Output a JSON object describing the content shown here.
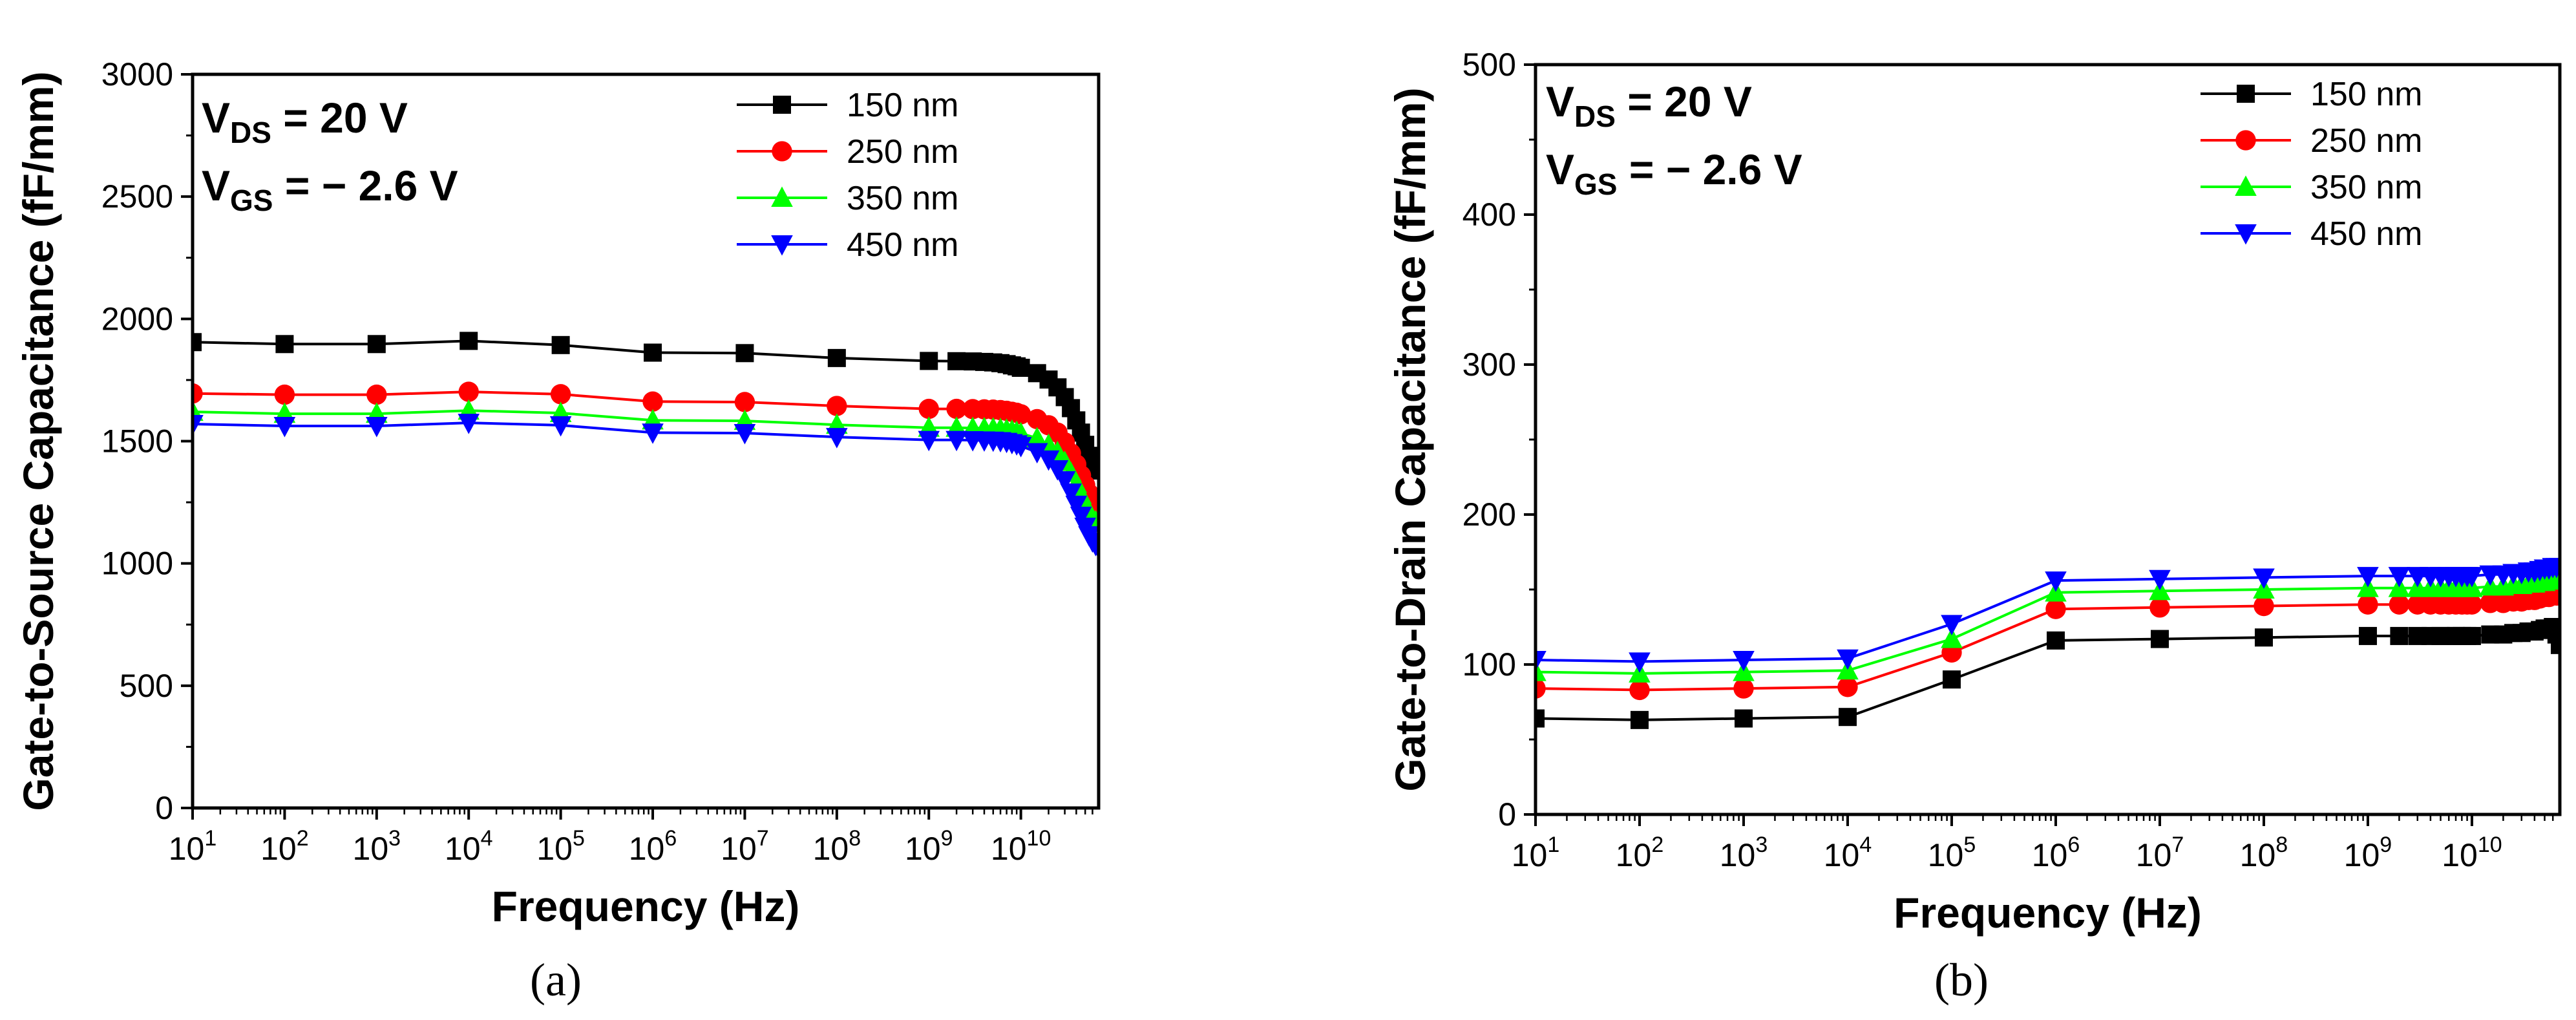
{
  "chart_data": [
    {
      "type": "line",
      "panel": "(a)",
      "xlabel": "Frequency (Hz)",
      "ylabel": "Gate-to-Source Capacitance (fF/mm)",
      "x_scale": "log",
      "xlim": [
        10,
        70000000000.0
      ],
      "ylim": [
        0,
        3000
      ],
      "y_ticks": [
        0,
        500,
        1000,
        1500,
        2000,
        2500,
        3000
      ],
      "x_ticks": [
        {
          "base": "10",
          "exp": "1",
          "value": 10
        },
        {
          "base": "10",
          "exp": "2",
          "value": 100
        },
        {
          "base": "10",
          "exp": "3",
          "value": 1000
        },
        {
          "base": "10",
          "exp": "4",
          "value": 10000
        },
        {
          "base": "10",
          "exp": "5",
          "value": 100000
        },
        {
          "base": "10",
          "exp": "6",
          "value": 1000000
        },
        {
          "base": "10",
          "exp": "7",
          "value": 10000000
        },
        {
          "base": "10",
          "exp": "8",
          "value": 100000000
        },
        {
          "base": "10",
          "exp": "9",
          "value": 1000000000
        },
        {
          "base": "10",
          "exp": "10",
          "value": 10000000000
        }
      ],
      "conditions": [
        {
          "main": "V",
          "sub": "DS",
          "rest": " = 20 V"
        },
        {
          "main": "V",
          "sub": "GS",
          "rest": " = − 2.6 V"
        }
      ],
      "legend_position": "top-right",
      "x": [
        10,
        100,
        1000,
        10000,
        100000,
        1000000,
        10000000,
        100000000,
        1000000000,
        2000000000,
        3000000000,
        4000000000,
        5000000000,
        6000000000,
        7000000000,
        8000000000,
        9000000000,
        10000000000,
        15000000000,
        20000000000,
        25000000000,
        30000000000,
        35000000000,
        40000000000,
        45000000000,
        50000000000,
        55000000000,
        60000000000,
        65000000000,
        70000000000
      ],
      "series": [
        {
          "name": "150 nm",
          "color": "#000000",
          "marker": "square",
          "values": [
            1905,
            1897,
            1897,
            1910,
            1893,
            1862,
            1860,
            1840,
            1828,
            1827,
            1826,
            1824,
            1822,
            1819,
            1815,
            1810,
            1806,
            1800,
            1778,
            1752,
            1720,
            1680,
            1635,
            1585,
            1535,
            1485,
            1440,
            1405,
            1390,
            1380
          ]
        },
        {
          "name": "250 nm",
          "color": "#ff0000",
          "marker": "circle",
          "values": [
            1695,
            1690,
            1690,
            1702,
            1692,
            1662,
            1660,
            1644,
            1632,
            1632,
            1631,
            1630,
            1629,
            1627,
            1624,
            1620,
            1616,
            1610,
            1590,
            1565,
            1535,
            1495,
            1450,
            1405,
            1360,
            1320,
            1285,
            1262,
            1252,
            1245
          ]
        },
        {
          "name": "350 nm",
          "color": "#00ff00",
          "marker": "triangle-up",
          "values": [
            1620,
            1612,
            1612,
            1625,
            1615,
            1585,
            1583,
            1567,
            1555,
            1555,
            1554,
            1553,
            1552,
            1550,
            1547,
            1543,
            1538,
            1532,
            1512,
            1485,
            1455,
            1415,
            1370,
            1325,
            1280,
            1240,
            1205,
            1182,
            1172,
            1165
          ]
        },
        {
          "name": "450 nm",
          "color": "#0000ff",
          "marker": "triangle-down",
          "values": [
            1570,
            1562,
            1562,
            1575,
            1565,
            1535,
            1533,
            1517,
            1505,
            1505,
            1504,
            1503,
            1502,
            1500,
            1497,
            1492,
            1487,
            1480,
            1455,
            1425,
            1385,
            1340,
            1290,
            1240,
            1195,
            1150,
            1115,
            1090,
            1075,
            1065
          ]
        }
      ]
    },
    {
      "type": "line",
      "panel": "(b)",
      "xlabel": "Frequency (Hz)",
      "ylabel": "Gate-to-Drain Capacitance (fF/mm)",
      "x_scale": "log",
      "xlim": [
        10,
        70000000000.0
      ],
      "ylim": [
        0,
        500
      ],
      "y_ticks": [
        0,
        100,
        200,
        300,
        400,
        500
      ],
      "x_ticks": [
        {
          "base": "10",
          "exp": "1",
          "value": 10
        },
        {
          "base": "10",
          "exp": "2",
          "value": 100
        },
        {
          "base": "10",
          "exp": "3",
          "value": 1000
        },
        {
          "base": "10",
          "exp": "4",
          "value": 10000
        },
        {
          "base": "10",
          "exp": "5",
          "value": 100000
        },
        {
          "base": "10",
          "exp": "6",
          "value": 1000000
        },
        {
          "base": "10",
          "exp": "7",
          "value": 10000000
        },
        {
          "base": "10",
          "exp": "8",
          "value": 100000000
        },
        {
          "base": "10",
          "exp": "9",
          "value": 1000000000
        },
        {
          "base": "10",
          "exp": "10",
          "value": 10000000000
        }
      ],
      "conditions": [
        {
          "main": "V",
          "sub": "DS",
          "rest": " = 20 V"
        },
        {
          "main": "V",
          "sub": "GS",
          "rest": " = − 2.6 V"
        }
      ],
      "legend_position": "top-right",
      "x": [
        10,
        100,
        1000,
        10000,
        100000,
        1000000,
        10000000,
        100000000,
        1000000000,
        2000000000,
        3000000000,
        4000000000,
        5000000000,
        6000000000,
        7000000000,
        8000000000,
        9000000000,
        10000000000,
        15000000000,
        20000000000,
        25000000000,
        30000000000,
        35000000000,
        40000000000,
        45000000000,
        50000000000,
        55000000000,
        60000000000,
        65000000000,
        70000000000
      ],
      "series": [
        {
          "name": "150 nm",
          "color": "#000000",
          "marker": "square",
          "values": [
            64,
            63,
            64,
            65,
            90,
            116,
            117,
            118,
            119,
            119,
            119,
            119,
            119,
            119,
            119,
            119,
            119,
            119,
            120,
            120,
            121,
            121,
            122,
            122,
            123,
            124,
            124,
            125,
            120,
            113
          ]
        },
        {
          "name": "250 nm",
          "color": "#ff0000",
          "marker": "circle",
          "values": [
            84,
            83,
            84,
            85,
            108,
            137,
            138,
            139,
            140,
            140,
            140,
            140,
            140,
            140,
            140,
            140,
            140,
            140,
            141,
            141,
            142,
            142,
            143,
            143,
            144,
            145,
            145,
            146,
            146,
            146
          ]
        },
        {
          "name": "350 nm",
          "color": "#00ff00",
          "marker": "triangle-up",
          "values": [
            95,
            94,
            95,
            96,
            117,
            148,
            149,
            150,
            151,
            151,
            151,
            151,
            151,
            151,
            151,
            151,
            151,
            151,
            152,
            152,
            153,
            153,
            154,
            154,
            155,
            155,
            156,
            156,
            157,
            157
          ]
        },
        {
          "name": "450 nm",
          "color": "#0000ff",
          "marker": "triangle-down",
          "values": [
            103,
            102,
            103,
            104,
            127,
            156,
            157,
            158,
            159,
            159,
            159,
            159,
            159,
            159,
            159,
            159,
            159,
            159,
            160,
            160,
            161,
            161,
            162,
            162,
            163,
            164,
            164,
            165,
            165,
            165
          ]
        }
      ]
    }
  ]
}
